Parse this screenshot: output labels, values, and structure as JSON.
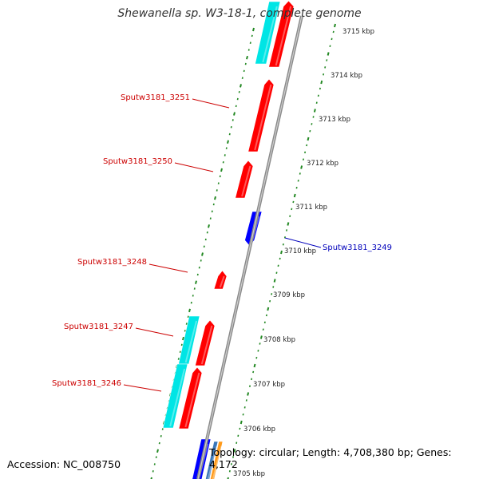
{
  "title": "Shewanella sp. W3-18-1, complete genome",
  "footer": {
    "accession": "Accession: NC_008750",
    "stats": "Topology: circular; Length: 4,708,380 bp; Genes: 4,172"
  },
  "ticks": [
    {
      "kbp": 3715,
      "label": "3715 kbp"
    },
    {
      "kbp": 3714,
      "label": "3714 kbp"
    },
    {
      "kbp": 3713,
      "label": "3713 kbp"
    },
    {
      "kbp": 3712,
      "label": "3712 kbp"
    },
    {
      "kbp": 3711,
      "label": "3711 kbp"
    },
    {
      "kbp": 3710,
      "label": "3710 kbp"
    },
    {
      "kbp": 3709,
      "label": "3709 kbp"
    },
    {
      "kbp": 3708,
      "label": "3708 kbp"
    },
    {
      "kbp": 3707,
      "label": "3707 kbp"
    },
    {
      "kbp": 3706,
      "label": "3706 kbp"
    },
    {
      "kbp": 3705,
      "label": "3705 kbp"
    }
  ],
  "genes": [
    {
      "label": "Sputw3181_3251",
      "color": "#cc0000",
      "side": "left"
    },
    {
      "label": "Sputw3181_3250",
      "color": "#cc0000",
      "side": "left"
    },
    {
      "label": "Sputw3181_3249",
      "color": "#0000bb",
      "side": "right"
    },
    {
      "label": "Sputw3181_3248",
      "color": "#cc0000",
      "side": "left"
    },
    {
      "label": "Sputw3181_3247",
      "color": "#cc0000",
      "side": "left"
    },
    {
      "label": "Sputw3181_3246",
      "color": "#cc0000",
      "side": "left"
    }
  ],
  "colors": {
    "cds": "#ff0000",
    "cds_reverse": "#0000ff",
    "rna": "#00e5e5",
    "backbone": "#8a8a8a",
    "gc_dots": "#228822"
  }
}
